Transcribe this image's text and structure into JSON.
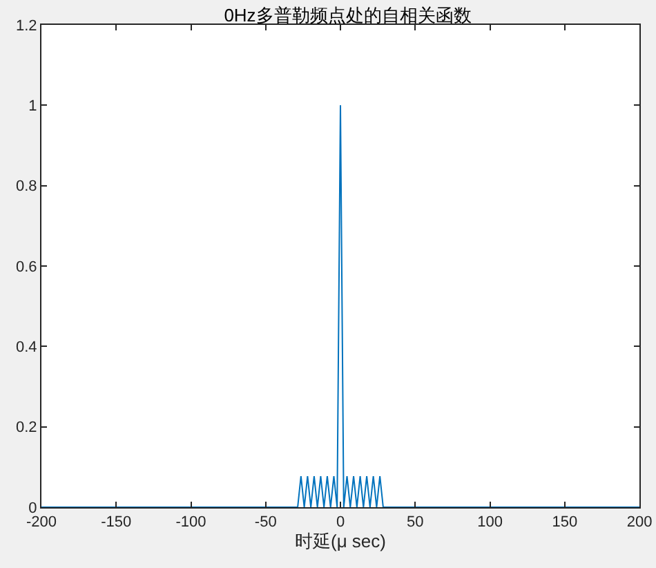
{
  "chart_data": {
    "type": "line",
    "title": "0Hz多普勒频点处的自相关函数",
    "xlabel": "时延(μ sec)",
    "x": [
      -200,
      -28.6,
      -26.4,
      -24.2,
      -22,
      -19.8,
      -17.6,
      -15.4,
      -13.2,
      -11,
      -8.8,
      -6.6,
      -4.4,
      -2.2,
      0,
      2.2,
      4.4,
      6.6,
      8.8,
      11,
      13.2,
      15.4,
      17.6,
      19.8,
      22,
      24.2,
      26.4,
      28.6,
      200
    ],
    "series": [
      {
        "color": "#0072bd",
        "values": [
          0,
          0,
          0.077,
          0,
          0.077,
          0,
          0.077,
          0,
          0.077,
          0,
          0.077,
          0,
          0.077,
          0,
          1,
          0,
          0.077,
          0,
          0.077,
          0,
          0.077,
          0,
          0.077,
          0,
          0.077,
          0,
          0.077,
          0,
          0
        ]
      }
    ],
    "xlim": [
      -200,
      200
    ],
    "xticks": [
      -200,
      -150,
      -100,
      -50,
      0,
      50,
      100,
      150,
      200
    ],
    "ylim": [
      0,
      1.2
    ],
    "yticks": [
      0,
      0.2,
      0.4,
      0.6,
      0.8,
      1,
      1.2
    ],
    "grid": false,
    "marker": "none",
    "line_style": "solid"
  }
}
